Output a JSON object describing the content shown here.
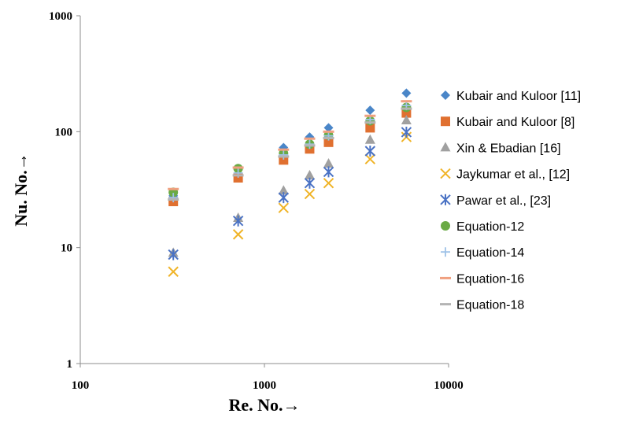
{
  "chart_data": {
    "type": "scatter",
    "title": "",
    "xlabel": "Re. No.→",
    "ylabel": "Nu. No.→",
    "x_scale": "log",
    "y_scale": "log",
    "xlim": [
      100,
      10000
    ],
    "ylim": [
      1,
      1000
    ],
    "x_ticks": [
      "100",
      "1000",
      "10000"
    ],
    "y_ticks": [
      "1",
      "10",
      "100",
      "1000"
    ],
    "grid": false,
    "legend_position": "right",
    "x": [
      320,
      720,
      1270,
      1760,
      2230,
      3750,
      5900
    ],
    "series": [
      {
        "name": "Kubair and Kuloor [11]",
        "marker": "diamond",
        "color": "#4a86c8",
        "values": [
          28,
          47,
          73,
          90,
          108,
          153,
          215
        ]
      },
      {
        "name": "Kubair and Kuloor [8]",
        "marker": "square",
        "color": "#e07030",
        "values": [
          25,
          40,
          57,
          71,
          81,
          108,
          145
        ]
      },
      {
        "name": "Xin & Ebadian [16]",
        "marker": "triangle",
        "color": "#a0a0a0",
        "values": [
          9,
          18,
          31,
          42,
          53,
          85,
          125
        ]
      },
      {
        "name": "Jaykumar et al., [12]",
        "marker": "x",
        "color": "#f0b428",
        "values": [
          6.2,
          13,
          22,
          29,
          36,
          58,
          90
        ]
      },
      {
        "name": "Pawar et al., [23]",
        "marker": "star",
        "color": "#4a72c4",
        "values": [
          8.7,
          17,
          27,
          36,
          45,
          68,
          99
        ]
      },
      {
        "name": "Equation-12",
        "marker": "circle",
        "color": "#6aaa45",
        "values": [
          30,
          48,
          65,
          78,
          93,
          124,
          162
        ]
      },
      {
        "name": "Equation-14",
        "marker": "plus",
        "color": "#9ec2e8",
        "values": [
          27,
          44,
          63,
          78,
          92,
          127,
          168
        ]
      },
      {
        "name": "Equation-16",
        "marker": "dash",
        "color": "#f0a080",
        "values": [
          32,
          49,
          70,
          87,
          100,
          137,
          183
        ]
      },
      {
        "name": "Equation-18",
        "marker": "dash",
        "color": "#b4b4b4",
        "values": [
          26,
          42,
          61,
          76,
          88,
          120,
          158
        ]
      }
    ]
  }
}
